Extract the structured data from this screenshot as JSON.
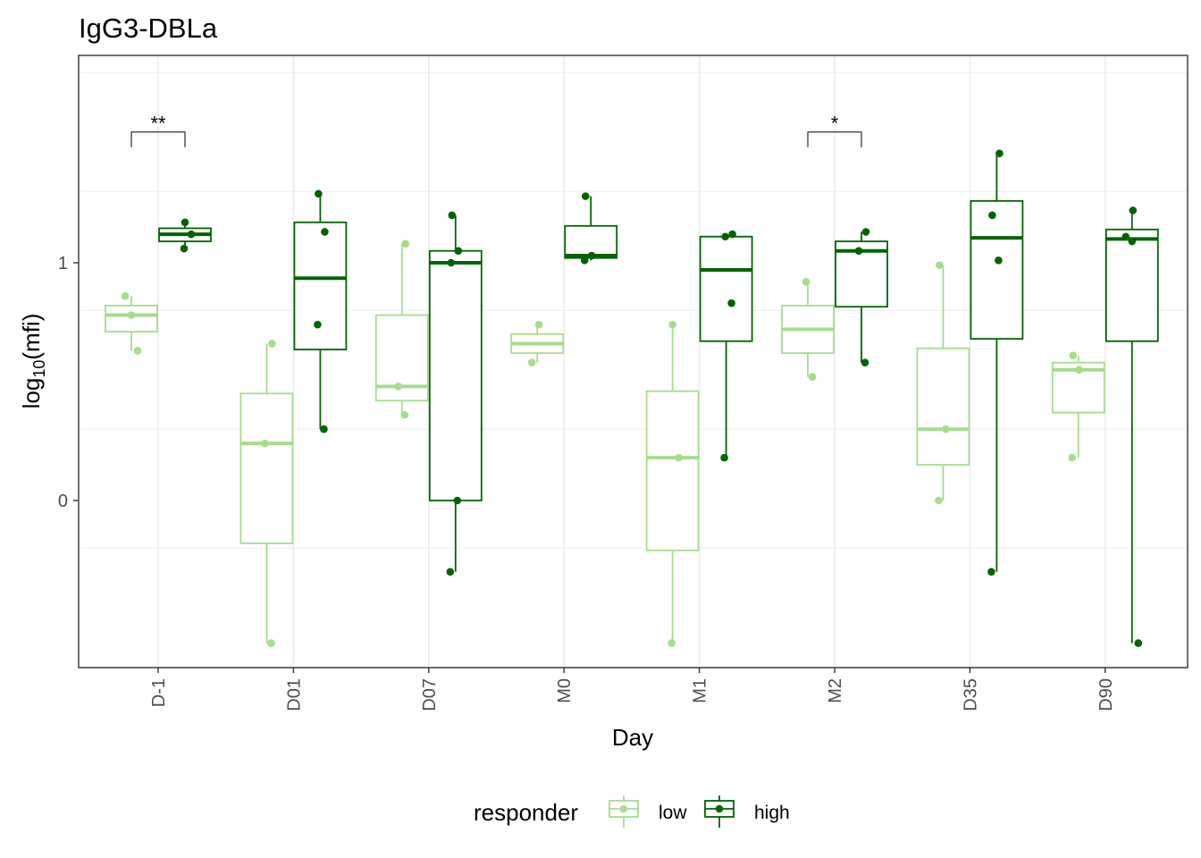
{
  "chart_data": {
    "type": "boxplot",
    "title": "IgG3-DBLa",
    "xlabel": "Day",
    "ylabel_base": "log",
    "ylabel_sub": "10",
    "ylabel_arg": "(mfi)",
    "y_ticks": [
      0,
      1
    ],
    "ylim": [
      -0.7,
      1.9
    ],
    "grid": true,
    "legend_position": "bottom",
    "legend_title": "responder",
    "categories": [
      "D-1",
      "D01",
      "D07",
      "M0",
      "M1",
      "M2",
      "D35",
      "D90"
    ],
    "colors": {
      "low": "#a6dd8c",
      "high": "#006400",
      "axis": "#333333",
      "grid": "#ebebeb"
    },
    "series": [
      {
        "name": "low",
        "boxes": [
          {
            "category": "D-1",
            "whisker_low": 0.63,
            "q1": 0.71,
            "median": 0.78,
            "q3": 0.82,
            "whisker_high": 0.86,
            "points": [
              0.86,
              0.78,
              0.63
            ]
          },
          {
            "category": "D01",
            "whisker_low": -0.6,
            "q1": -0.18,
            "median": 0.24,
            "q3": 0.45,
            "whisker_high": 0.66,
            "points": [
              0.66,
              0.24,
              -0.6
            ]
          },
          {
            "category": "D07",
            "whisker_low": 0.36,
            "q1": 0.42,
            "median": 0.48,
            "q3": 0.78,
            "whisker_high": 1.08,
            "points": [
              1.08,
              0.48,
              0.36
            ]
          },
          {
            "category": "M0",
            "whisker_low": 0.58,
            "q1": 0.62,
            "median": 0.66,
            "q3": 0.7,
            "whisker_high": 0.74,
            "points": [
              0.74,
              0.58
            ]
          },
          {
            "category": "M1",
            "whisker_low": -0.6,
            "q1": -0.21,
            "median": 0.18,
            "q3": 0.46,
            "whisker_high": 0.74,
            "points": [
              0.74,
              0.18,
              -0.6
            ]
          },
          {
            "category": "M2",
            "whisker_low": 0.52,
            "q1": 0.62,
            "median": 0.72,
            "q3": 0.82,
            "whisker_high": 0.92,
            "points": [
              0.92,
              0.52
            ]
          },
          {
            "category": "D35",
            "whisker_low": 0.0,
            "q1": 0.15,
            "median": 0.3,
            "q3": 0.64,
            "whisker_high": 0.99,
            "points": [
              0.99,
              0.3,
              0.0
            ]
          },
          {
            "category": "D90",
            "whisker_low": 0.18,
            "q1": 0.37,
            "median": 0.55,
            "q3": 0.58,
            "whisker_high": 0.61,
            "points": [
              0.61,
              0.55,
              0.18
            ]
          }
        ]
      },
      {
        "name": "high",
        "boxes": [
          {
            "category": "D-1",
            "whisker_low": 1.06,
            "q1": 1.09,
            "median": 1.12,
            "q3": 1.145,
            "whisker_high": 1.17,
            "points": [
              1.17,
              1.12,
              1.06
            ]
          },
          {
            "category": "D01",
            "whisker_low": 0.3,
            "q1": 0.635,
            "median": 0.935,
            "q3": 1.17,
            "whisker_high": 1.29,
            "points": [
              1.29,
              1.13,
              0.74,
              0.3
            ]
          },
          {
            "category": "D07",
            "whisker_low": -0.3,
            "q1": 0.0,
            "median": 1.0,
            "q3": 1.05,
            "whisker_high": 1.2,
            "points": [
              1.2,
              1.05,
              1.0,
              0.0,
              -0.3
            ]
          },
          {
            "category": "M0",
            "whisker_low": 1.01,
            "q1": 1.02,
            "median": 1.03,
            "q3": 1.155,
            "whisker_high": 1.28,
            "points": [
              1.28,
              1.03,
              1.01
            ]
          },
          {
            "category": "M1",
            "whisker_low": 0.18,
            "q1": 0.67,
            "median": 0.97,
            "q3": 1.11,
            "whisker_high": 1.12,
            "points": [
              1.12,
              1.11,
              0.83,
              0.18
            ]
          },
          {
            "category": "M2",
            "whisker_low": 0.58,
            "q1": 0.815,
            "median": 1.05,
            "q3": 1.09,
            "whisker_high": 1.13,
            "points": [
              1.13,
              1.05,
              0.58
            ]
          },
          {
            "category": "D35",
            "whisker_low": -0.3,
            "q1": 0.68,
            "median": 1.105,
            "q3": 1.26,
            "whisker_high": 1.46,
            "points": [
              1.46,
              1.2,
              1.01,
              -0.3
            ]
          },
          {
            "category": "D90",
            "whisker_low": -0.6,
            "q1": 0.67,
            "median": 1.1,
            "q3": 1.14,
            "whisker_high": 1.22,
            "points": [
              1.22,
              1.11,
              1.09,
              -0.6
            ]
          }
        ]
      }
    ],
    "annotations": [
      {
        "category": "D-1",
        "label": "**",
        "y": 1.55
      },
      {
        "category": "M2",
        "label": "*",
        "y": 1.55
      }
    ]
  }
}
